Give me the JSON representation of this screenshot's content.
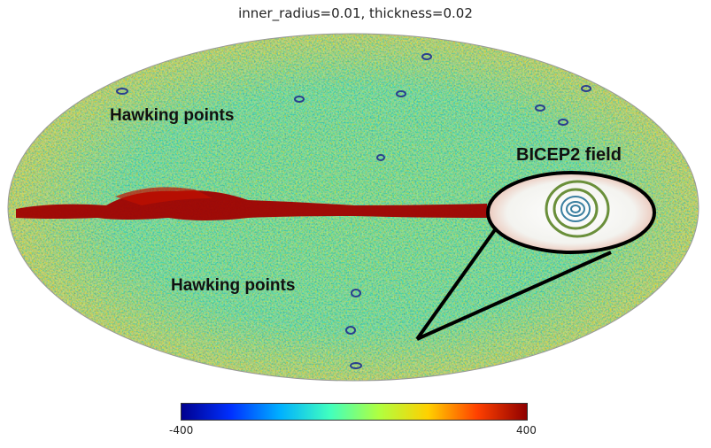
{
  "title": "inner_radius=0.01, thickness=0.02",
  "annotations": {
    "hawking_top": "Hawking points",
    "hawking_bottom": "Hawking points",
    "bicep": "BICEP2 field"
  },
  "colorbar": {
    "min_label": "-400",
    "max_label": "400",
    "stops": [
      "#00008f",
      "#0030ff",
      "#00b0ff",
      "#40ffbf",
      "#b0ff40",
      "#ffd000",
      "#ff4000",
      "#8f0000"
    ]
  },
  "colors": {
    "background_field": "#7fd08a",
    "galactic_plane": "#a00000",
    "ring": "#6a8f3a",
    "callout": "#000000"
  }
}
